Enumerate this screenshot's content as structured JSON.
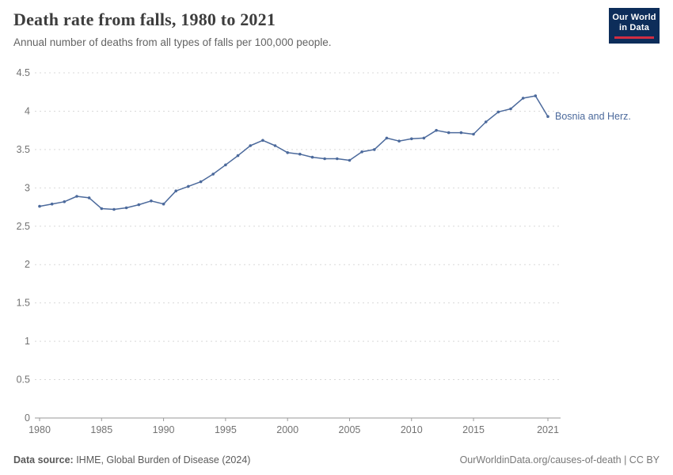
{
  "header": {
    "title": "Death rate from falls, 1980 to 2021",
    "subtitle": "Annual number of deaths from all types of falls per 100,000 people."
  },
  "logo": {
    "line1": "Our World",
    "line2": "in Data"
  },
  "footer": {
    "source_label": "Data source:",
    "source_text": " IHME, Global Burden of Disease (2024)",
    "right_text": "OurWorldinData.org/causes-of-death | CC BY"
  },
  "chart_data": {
    "type": "line",
    "title": "Death rate from falls, 1980 to 2021",
    "xlabel": "",
    "ylabel": "",
    "xlim": [
      1980,
      2021
    ],
    "ylim": [
      0,
      4.5
    ],
    "grid": "horizontal-dashed",
    "legend_position": "end-of-line-label",
    "xticks": [
      1980,
      1985,
      1990,
      1995,
      2000,
      2005,
      2010,
      2015,
      2021
    ],
    "yticks": [
      0,
      0.5,
      1,
      1.5,
      2,
      2.5,
      3,
      3.5,
      4,
      4.5
    ],
    "series": [
      {
        "name": "Bosnia and Herz.",
        "color": "#4c6a9c",
        "x": [
          1980,
          1981,
          1982,
          1983,
          1984,
          1985,
          1986,
          1987,
          1988,
          1989,
          1990,
          1991,
          1992,
          1993,
          1994,
          1995,
          1996,
          1997,
          1998,
          1999,
          2000,
          2001,
          2002,
          2003,
          2004,
          2005,
          2006,
          2007,
          2008,
          2009,
          2010,
          2011,
          2012,
          2013,
          2014,
          2015,
          2016,
          2017,
          2018,
          2019,
          2020,
          2021
        ],
        "values": [
          2.76,
          2.79,
          2.82,
          2.89,
          2.87,
          2.73,
          2.72,
          2.74,
          2.78,
          2.83,
          2.79,
          2.96,
          3.02,
          3.08,
          3.18,
          3.3,
          3.42,
          3.55,
          3.62,
          3.55,
          3.46,
          3.44,
          3.4,
          3.38,
          3.38,
          3.36,
          3.47,
          3.5,
          3.65,
          3.61,
          3.64,
          3.65,
          3.75,
          3.72,
          3.72,
          3.7,
          3.86,
          3.99,
          4.03,
          4.17,
          4.2,
          3.93
        ]
      }
    ]
  }
}
